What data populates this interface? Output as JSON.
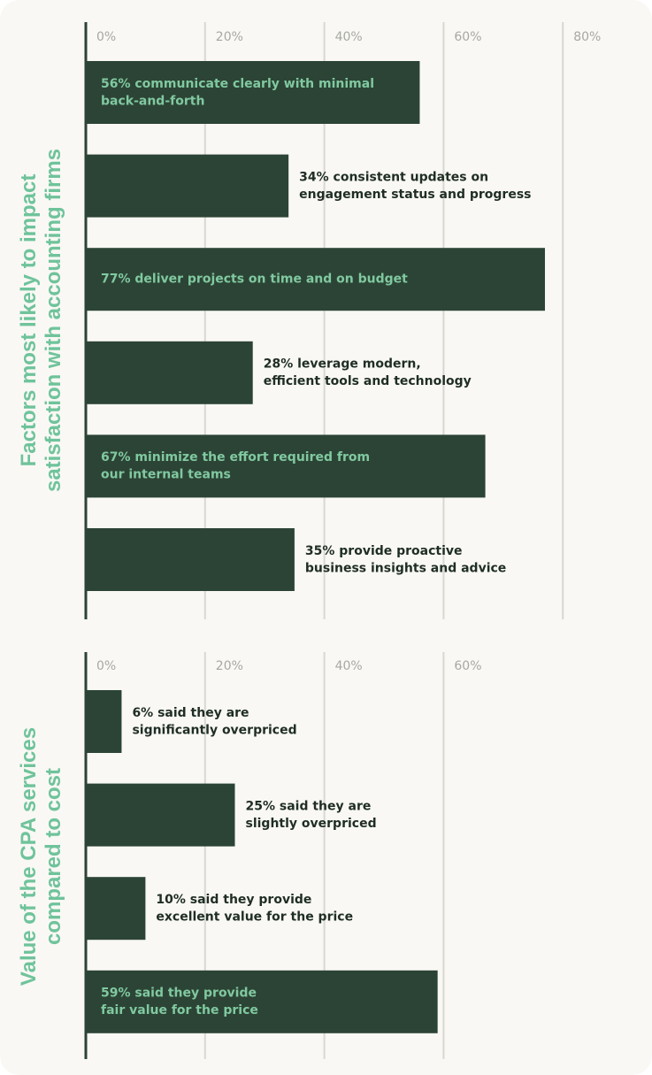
{
  "colors": {
    "background": "#f9f8f4",
    "bar": "#2c4435",
    "label_inside": "#80c9a1",
    "label_outside": "#1f2d25",
    "title": "#6fc39b",
    "grid": "#d8d7d1",
    "tick": "#a8a8a3",
    "axis": "#2c4435"
  },
  "chart_data": [
    {
      "type": "bar",
      "orientation": "horizontal",
      "ylabel": "Factors most likely to impact satisfaction with accounting firms",
      "ylabel_lines": [
        "Factors most likely to impact",
        "satisfaction with accounting firms"
      ],
      "xlim": [
        0,
        80
      ],
      "ticks": [
        0,
        20,
        40,
        60,
        80
      ],
      "tick_labels": [
        "0%",
        "20%",
        "40%",
        "60%",
        "80%"
      ],
      "grid": true,
      "bars": [
        {
          "value": 56,
          "lines": [
            "56% communicate clearly with minimal",
            "back-and-forth"
          ],
          "label_inside": true
        },
        {
          "value": 34,
          "lines": [
            "34% consistent updates on",
            "engagement status and progress"
          ],
          "label_inside": false
        },
        {
          "value": 77,
          "lines": [
            "77% deliver projects on time and on budget"
          ],
          "label_inside": true
        },
        {
          "value": 28,
          "lines": [
            "28% leverage modern,",
            "efficient tools and technology"
          ],
          "label_inside": false
        },
        {
          "value": 67,
          "lines": [
            "67% minimize the effort required from",
            "our internal teams"
          ],
          "label_inside": true
        },
        {
          "value": 35,
          "lines": [
            "35% provide proactive",
            "business insights and advice"
          ],
          "label_inside": false
        }
      ]
    },
    {
      "type": "bar",
      "orientation": "horizontal",
      "ylabel": "Value of the CPA services compared to cost",
      "ylabel_lines": [
        "Value of the CPA services",
        "compared to cost"
      ],
      "xlim": [
        0,
        80
      ],
      "ticks": [
        0,
        20,
        40,
        60
      ],
      "tick_labels": [
        "0%",
        "20%",
        "40%",
        "60%"
      ],
      "grid": true,
      "bars": [
        {
          "value": 6,
          "lines": [
            "6% said they are",
            "significantly overpriced"
          ],
          "label_inside": false
        },
        {
          "value": 25,
          "lines": [
            "25% said they are",
            "slightly overpriced"
          ],
          "label_inside": false
        },
        {
          "value": 10,
          "lines": [
            "10% said they provide",
            "excellent value for the price"
          ],
          "label_inside": false
        },
        {
          "value": 59,
          "lines": [
            "59% said they provide",
            "fair value for the price"
          ],
          "label_inside": true
        }
      ]
    }
  ]
}
